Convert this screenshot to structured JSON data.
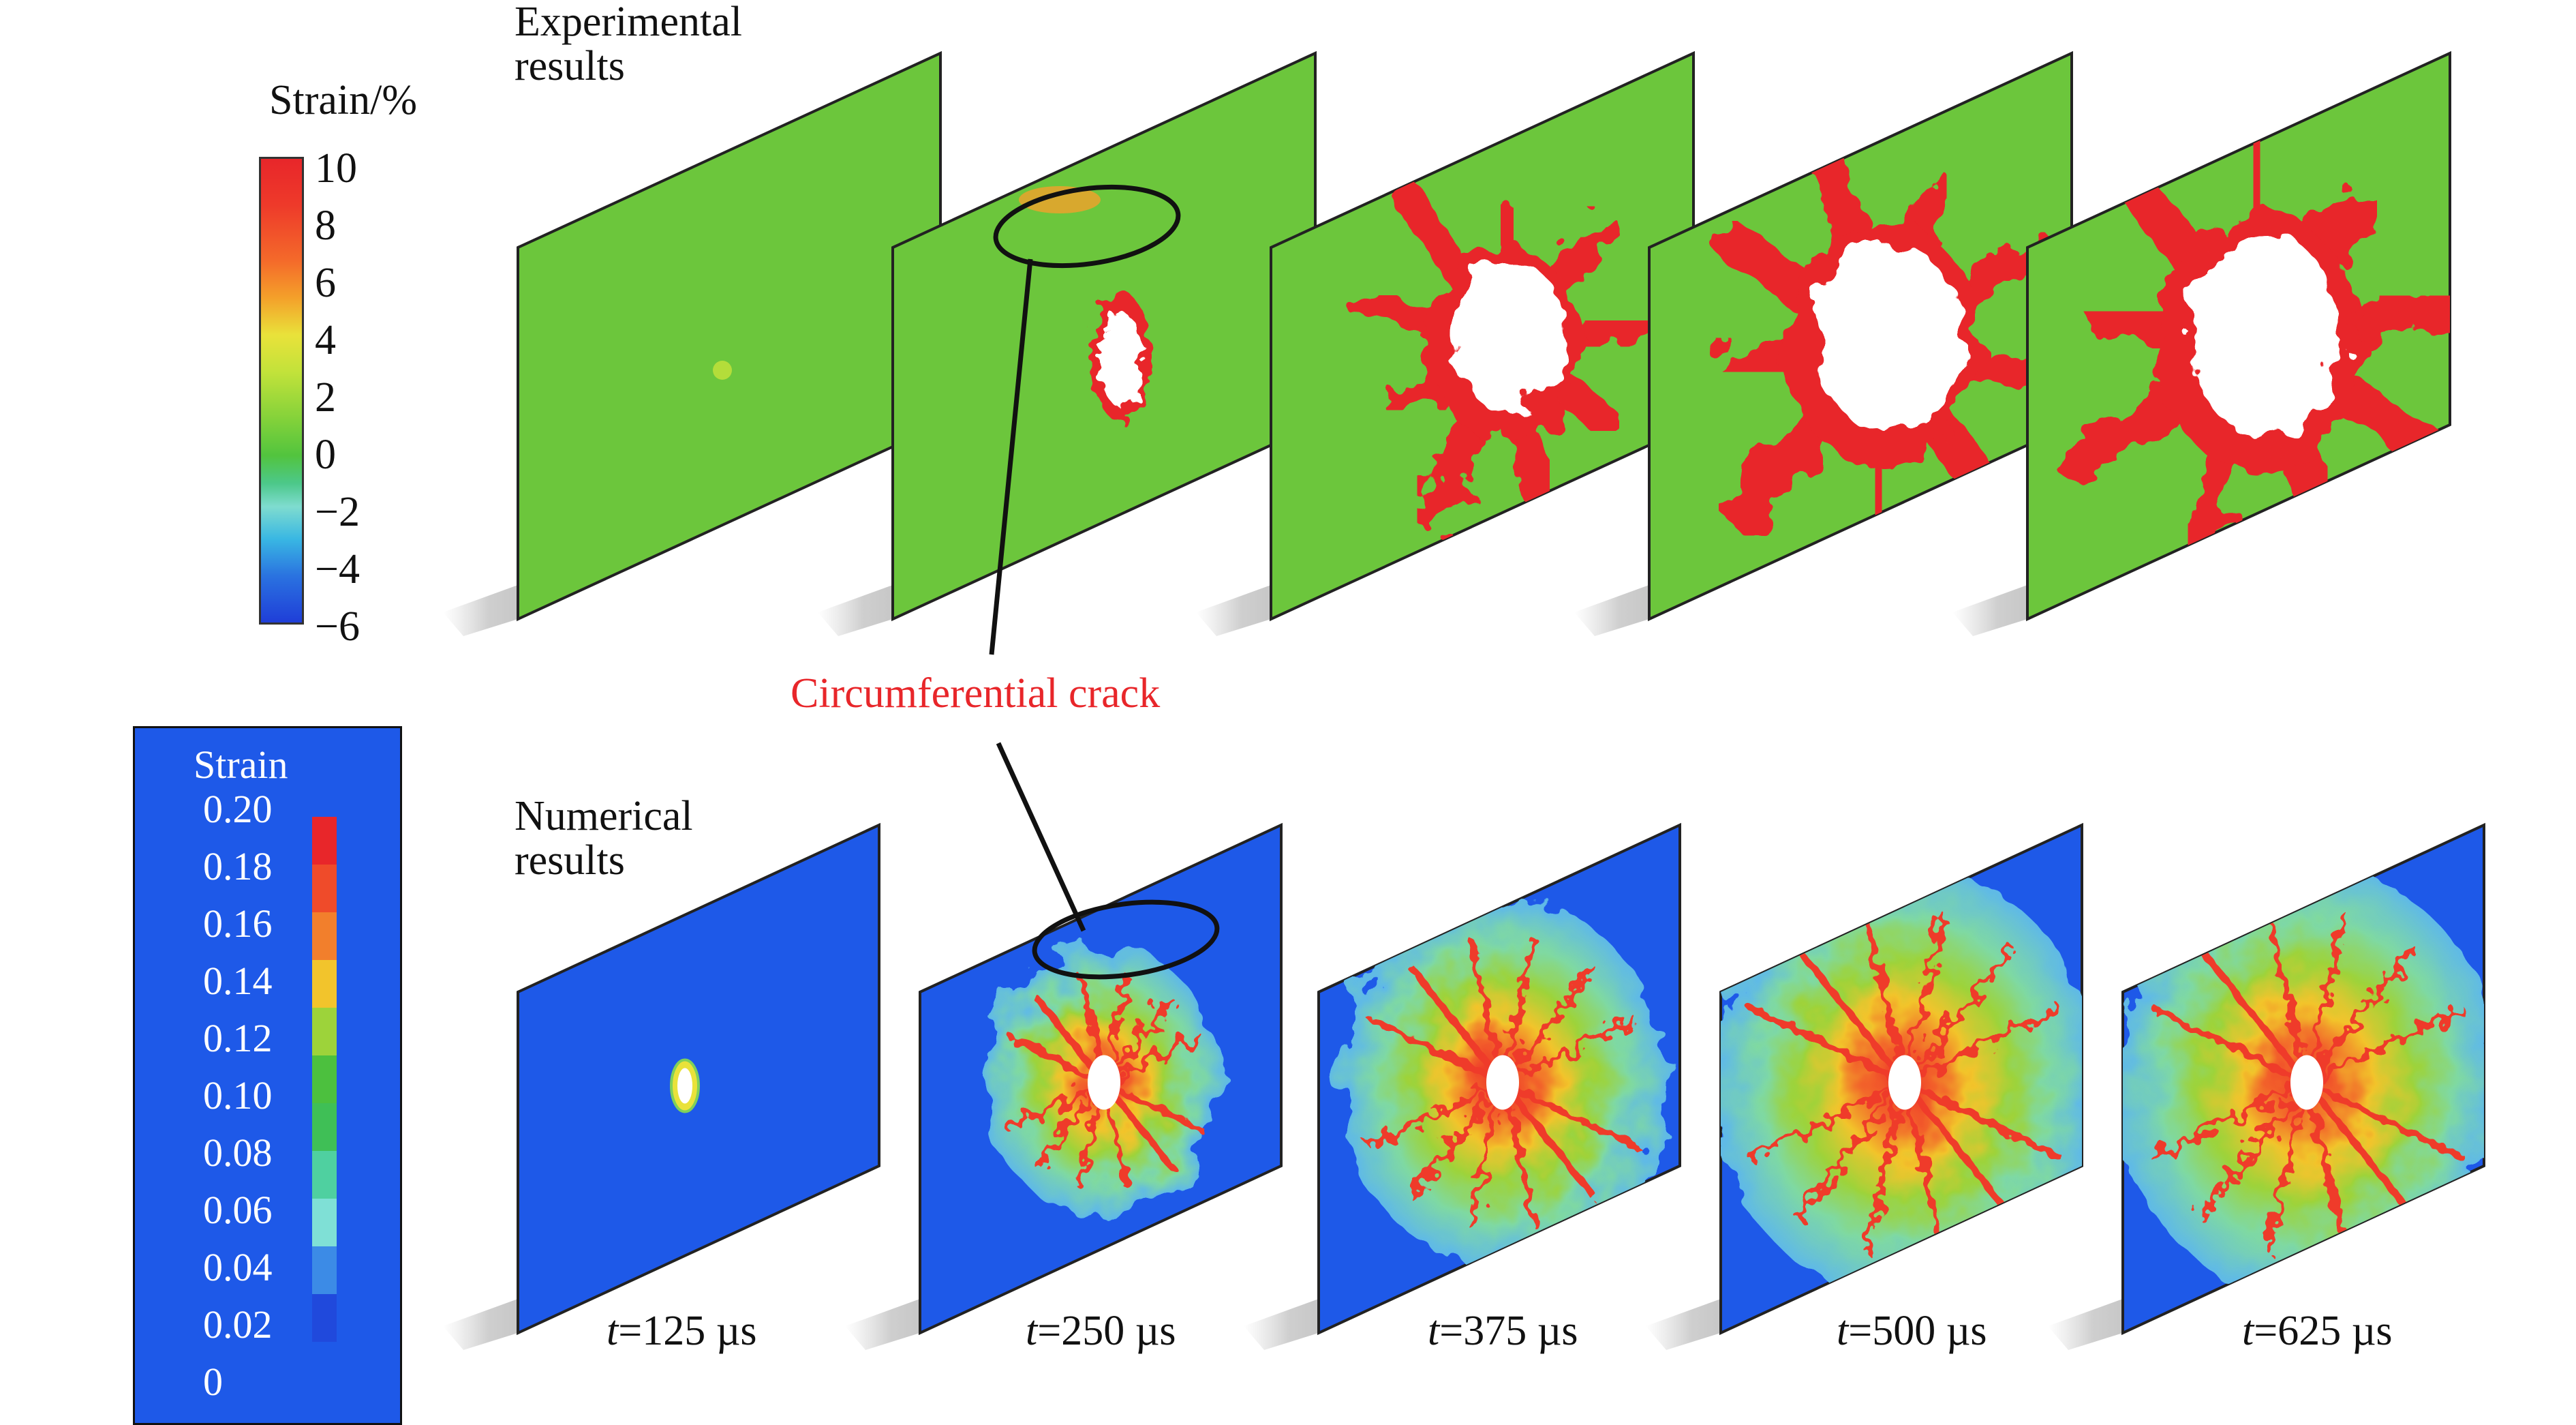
{
  "experimental": {
    "label": "Experimental\nresults",
    "legend_title": "Strain/%",
    "legend_ticks": [
      "10",
      "8",
      "6",
      "4",
      "2",
      "0",
      "−2",
      "−4",
      "−6"
    ]
  },
  "numerical": {
    "label": "Numerical\nresults",
    "legend_title": "Strain",
    "legend_ticks": [
      "0.20",
      "0.18",
      "0.16",
      "0.14",
      "0.12",
      "0.10",
      "0.08",
      "0.06",
      "0.04",
      "0.02",
      "0"
    ],
    "legend_colors": [
      "#e8262a",
      "#ef4b2a",
      "#f27f2c",
      "#f2c42c",
      "#9dd33a",
      "#4cc03e",
      "#3fbf56",
      "#4fd0a0",
      "#7fe0d6",
      "#3c8be6",
      "#2049dc",
      "#1e59e8"
    ]
  },
  "annotation": {
    "label": "Circumferential crack",
    "color": "#e8262a"
  },
  "time_labels": [
    {
      "t": "t",
      "value": "=125 µs"
    },
    {
      "t": "t",
      "value": "=250 µs"
    },
    {
      "t": "t",
      "value": "=375 µs"
    },
    {
      "t": "t",
      "value": "=500 µs"
    },
    {
      "t": "t",
      "value": "=625 µs"
    }
  ],
  "colors": {
    "field_green": "#6cc63c",
    "crack_red": "#e8262a",
    "numerical_blue": "#1e59e8",
    "crack_white": "#ffffff"
  }
}
